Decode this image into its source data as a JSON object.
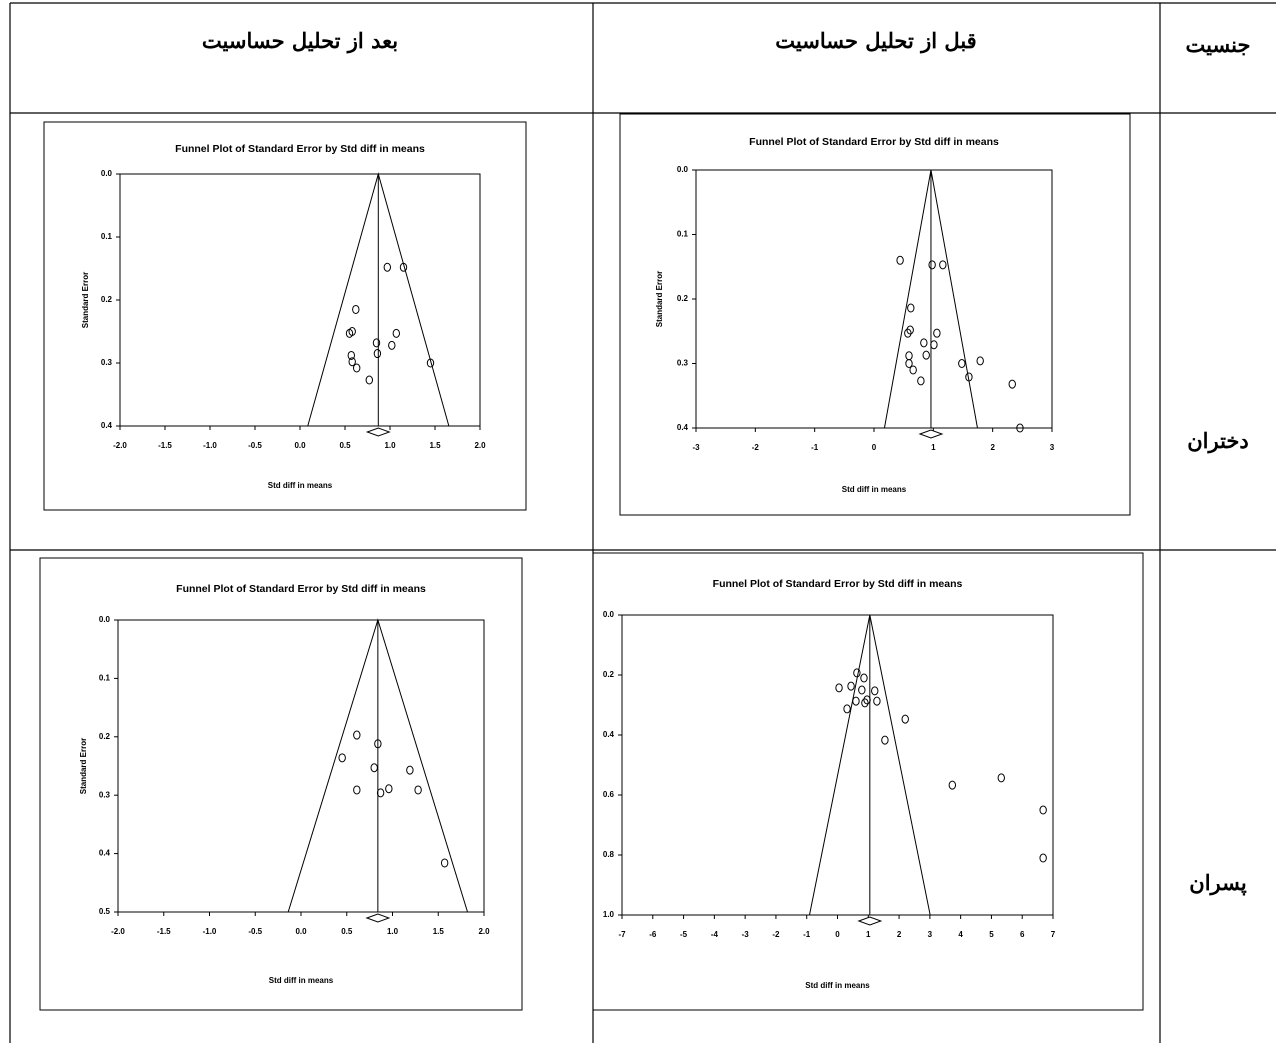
{
  "table": {
    "header": [
      "جنسیت",
      "قبل از تحلیل حساسیت",
      "بعد از تحلیل حساسیت"
    ],
    "rows": [
      "دختران",
      "پسران"
    ]
  },
  "chart_data": [
    {
      "type": "funnel",
      "title": "Funnel Plot of Standard Error by Std diff in means",
      "x_label": "Std diff in means",
      "y_label": "Standard Error",
      "summary_effect": 0.87,
      "y_reversed": true,
      "x": [
        0.97,
        1.15,
        0.62,
        0.58,
        0.55,
        1.07,
        0.85,
        1.02,
        0.86,
        0.57,
        0.58,
        0.63,
        0.77,
        1.45
      ],
      "values": [
        0.148,
        0.148,
        0.215,
        0.25,
        0.253,
        0.253,
        0.268,
        0.272,
        0.285,
        0.288,
        0.298,
        0.308,
        0.327,
        0.3
      ],
      "xlim": [
        -2,
        2
      ],
      "xticks": [
        {
          "value": -2,
          "label": "-2.0"
        },
        -1.5,
        {
          "value": -1,
          "label": "-1.0"
        },
        -0.5,
        {
          "value": 0,
          "label": "0.0"
        },
        0.5,
        {
          "value": 1,
          "label": "1.0"
        },
        1.5,
        {
          "value": 2,
          "label": "2.0"
        }
      ],
      "ylim": [
        0,
        0.4
      ],
      "yticks": [
        {
          "value": 0,
          "label": "0.0"
        },
        0.1,
        0.2,
        0.3,
        0.4
      ]
    },
    {
      "type": "funnel",
      "title": "Funnel Plot of Standard Error by Std diff in means",
      "x_label": "Std diff in means",
      "y_label": "Standard Error",
      "summary_effect": 0.96,
      "y_reversed": true,
      "x": [
        0.44,
        0.98,
        1.16,
        0.62,
        0.61,
        0.57,
        1.06,
        0.84,
        1.01,
        0.88,
        0.59,
        0.59,
        0.66,
        0.79,
        1.48,
        1.79,
        1.6,
        2.33,
        2.46
      ],
      "values": [
        0.14,
        0.147,
        0.147,
        0.214,
        0.248,
        0.253,
        0.253,
        0.268,
        0.271,
        0.287,
        0.288,
        0.3,
        0.31,
        0.327,
        0.3,
        0.296,
        0.321,
        0.332,
        0.4
      ],
      "xlim": [
        -3,
        3
      ],
      "xticks": [
        -3,
        -2,
        -1,
        0,
        1,
        2,
        3
      ],
      "ylim": [
        0,
        0.4
      ],
      "yticks": [
        {
          "value": 0,
          "label": "0.0"
        },
        0.1,
        0.2,
        0.3,
        0.4
      ]
    },
    {
      "type": "funnel",
      "title": "Funnel Plot of Standard Error by Std diff in means",
      "x_label": "Std diff in means",
      "y_label": "Standard Error",
      "summary_effect": 0.84,
      "y_reversed": true,
      "x": [
        0.61,
        0.84,
        0.45,
        0.8,
        1.19,
        0.61,
        0.96,
        1.28,
        0.87,
        1.57
      ],
      "values": [
        0.197,
        0.212,
        0.236,
        0.253,
        0.257,
        0.291,
        0.289,
        0.291,
        0.296,
        0.416
      ],
      "xlim": [
        -2,
        2
      ],
      "xticks": [
        {
          "value": -2,
          "label": "-2.0"
        },
        -1.5,
        {
          "value": -1,
          "label": "-1.0"
        },
        -0.5,
        {
          "value": 0,
          "label": "0.0"
        },
        0.5,
        {
          "value": 1,
          "label": "1.0"
        },
        1.5,
        {
          "value": 2,
          "label": "2.0"
        }
      ],
      "ylim": [
        0,
        0.5
      ],
      "yticks": [
        {
          "value": 0,
          "label": "0.0"
        },
        0.1,
        0.2,
        0.3,
        0.4,
        0.5
      ]
    },
    {
      "type": "funnel",
      "title": "Funnel Plot of Standard Error by Std diff in means",
      "x_label": "Std diff in means",
      "summary_effect": 1.05,
      "y_reversed": true,
      "x": [
        0.05,
        0.44,
        0.63,
        0.86,
        0.79,
        1.21,
        0.6,
        0.89,
        0.96,
        1.28,
        0.31,
        2.2,
        1.54,
        3.73,
        5.32,
        6.68,
        6.68
      ],
      "values": [
        0.243,
        0.237,
        0.193,
        0.21,
        0.25,
        0.253,
        0.287,
        0.293,
        0.283,
        0.287,
        0.313,
        0.347,
        0.417,
        0.567,
        0.543,
        0.65,
        0.81
      ],
      "xlim": [
        -7,
        7
      ],
      "xticks": [
        -7,
        -6,
        -5,
        -4,
        -3,
        -2,
        -1,
        0,
        1,
        2,
        3,
        4,
        5,
        6,
        7
      ],
      "ylim": [
        0,
        1
      ],
      "yticks": [
        {
          "value": 0,
          "label": "0.0"
        },
        0.2,
        0.4,
        0.6,
        0.8,
        {
          "value": 1,
          "label": "1.0"
        }
      ]
    }
  ]
}
